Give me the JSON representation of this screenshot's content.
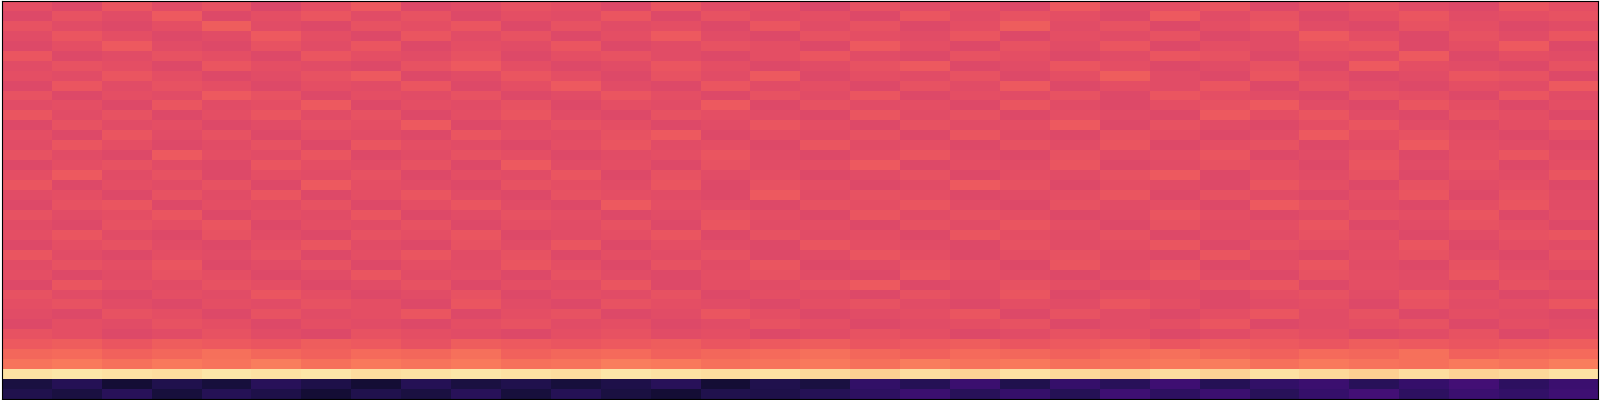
{
  "chart_data": {
    "type": "heatmap",
    "color": "magma",
    "tick_labels": false,
    "zlim": [
      0,
      1
    ],
    "cells": [
      [
        0.62,
        0.6,
        0.64,
        0.61,
        0.63,
        0.59,
        0.62,
        0.65,
        0.6,
        0.61,
        0.63,
        0.62,
        0.6,
        0.64,
        0.61,
        0.62,
        0.59,
        0.63,
        0.61,
        0.62,
        0.6,
        0.65,
        0.61,
        0.62,
        0.64,
        0.6,
        0.62,
        0.63,
        0.61,
        0.6,
        0.64,
        0.62
      ],
      [
        0.6,
        0.63,
        0.61,
        0.65,
        0.6,
        0.62,
        0.64,
        0.61,
        0.63,
        0.6,
        0.62,
        0.61,
        0.64,
        0.6,
        0.63,
        0.61,
        0.62,
        0.6,
        0.64,
        0.61,
        0.63,
        0.62,
        0.6,
        0.65,
        0.61,
        0.63,
        0.6,
        0.62,
        0.64,
        0.61,
        0.62,
        0.63
      ],
      [
        0.63,
        0.61,
        0.6,
        0.62,
        0.66,
        0.61,
        0.6,
        0.63,
        0.62,
        0.64,
        0.6,
        0.63,
        0.61,
        0.62,
        0.6,
        0.64,
        0.61,
        0.63,
        0.6,
        0.62,
        0.66,
        0.61,
        0.63,
        0.6,
        0.62,
        0.64,
        0.61,
        0.6,
        0.63,
        0.62,
        0.6,
        0.61
      ],
      [
        0.61,
        0.64,
        0.62,
        0.6,
        0.61,
        0.65,
        0.62,
        0.6,
        0.64,
        0.61,
        0.63,
        0.6,
        0.62,
        0.65,
        0.61,
        0.6,
        0.63,
        0.62,
        0.61,
        0.64,
        0.6,
        0.62,
        0.61,
        0.63,
        0.6,
        0.61,
        0.65,
        0.62,
        0.6,
        0.63,
        0.61,
        0.64
      ],
      [
        0.6,
        0.62,
        0.65,
        0.61,
        0.6,
        0.63,
        0.61,
        0.64,
        0.6,
        0.62,
        0.61,
        0.64,
        0.6,
        0.61,
        0.63,
        0.62,
        0.6,
        0.65,
        0.62,
        0.6,
        0.63,
        0.61,
        0.64,
        0.6,
        0.62,
        0.61,
        0.63,
        0.64,
        0.6,
        0.62,
        0.65,
        0.6
      ],
      [
        0.64,
        0.6,
        0.61,
        0.63,
        0.62,
        0.6,
        0.64,
        0.62,
        0.61,
        0.63,
        0.6,
        0.62,
        0.63,
        0.61,
        0.6,
        0.62,
        0.64,
        0.61,
        0.6,
        0.63,
        0.62,
        0.6,
        0.61,
        0.64,
        0.63,
        0.6,
        0.62,
        0.61,
        0.65,
        0.6,
        0.62,
        0.61
      ],
      [
        0.61,
        0.63,
        0.62,
        0.6,
        0.64,
        0.62,
        0.61,
        0.6,
        0.63,
        0.65,
        0.62,
        0.6,
        0.61,
        0.64,
        0.62,
        0.6,
        0.61,
        0.63,
        0.65,
        0.6,
        0.61,
        0.64,
        0.62,
        0.6,
        0.61,
        0.63,
        0.6,
        0.65,
        0.62,
        0.61,
        0.6,
        0.63
      ],
      [
        0.62,
        0.61,
        0.64,
        0.62,
        0.6,
        0.61,
        0.63,
        0.65,
        0.6,
        0.61,
        0.64,
        0.62,
        0.6,
        0.63,
        0.61,
        0.65,
        0.6,
        0.62,
        0.61,
        0.63,
        0.6,
        0.62,
        0.66,
        0.61,
        0.6,
        0.64,
        0.62,
        0.6,
        0.61,
        0.64,
        0.63,
        0.6
      ],
      [
        0.6,
        0.64,
        0.61,
        0.63,
        0.62,
        0.6,
        0.62,
        0.61,
        0.64,
        0.6,
        0.62,
        0.65,
        0.61,
        0.6,
        0.64,
        0.61,
        0.62,
        0.6,
        0.63,
        0.61,
        0.65,
        0.6,
        0.62,
        0.61,
        0.64,
        0.6,
        0.63,
        0.61,
        0.6,
        0.62,
        0.61,
        0.65
      ],
      [
        0.63,
        0.6,
        0.62,
        0.61,
        0.65,
        0.63,
        0.6,
        0.62,
        0.61,
        0.63,
        0.6,
        0.61,
        0.64,
        0.62,
        0.6,
        0.63,
        0.61,
        0.64,
        0.6,
        0.62,
        0.61,
        0.63,
        0.6,
        0.64,
        0.62,
        0.61,
        0.6,
        0.63,
        0.62,
        0.6,
        0.64,
        0.61
      ],
      [
        0.61,
        0.62,
        0.6,
        0.64,
        0.61,
        0.62,
        0.65,
        0.6,
        0.62,
        0.61,
        0.63,
        0.6,
        0.62,
        0.61,
        0.65,
        0.6,
        0.63,
        0.61,
        0.62,
        0.6,
        0.64,
        0.61,
        0.6,
        0.62,
        0.63,
        0.65,
        0.61,
        0.6,
        0.64,
        0.62,
        0.6,
        0.62
      ],
      [
        0.64,
        0.61,
        0.63,
        0.6,
        0.62,
        0.64,
        0.61,
        0.63,
        0.6,
        0.62,
        0.64,
        0.61,
        0.6,
        0.63,
        0.62,
        0.61,
        0.6,
        0.64,
        0.61,
        0.63,
        0.6,
        0.62,
        0.61,
        0.6,
        0.65,
        0.62,
        0.64,
        0.61,
        0.6,
        0.63,
        0.62,
        0.6
      ],
      [
        0.6,
        0.63,
        0.61,
        0.62,
        0.6,
        0.61,
        0.63,
        0.62,
        0.65,
        0.6,
        0.61,
        0.63,
        0.62,
        0.6,
        0.61,
        0.64,
        0.62,
        0.6,
        0.63,
        0.61,
        0.62,
        0.65,
        0.6,
        0.63,
        0.61,
        0.6,
        0.62,
        0.64,
        0.61,
        0.6,
        0.62,
        0.64
      ],
      [
        0.62,
        0.6,
        0.64,
        0.61,
        0.63,
        0.6,
        0.62,
        0.61,
        0.6,
        0.64,
        0.62,
        0.61,
        0.63,
        0.65,
        0.6,
        0.62,
        0.61,
        0.63,
        0.6,
        0.64,
        0.61,
        0.6,
        0.63,
        0.62,
        0.6,
        0.61,
        0.65,
        0.62,
        0.63,
        0.61,
        0.6,
        0.62
      ],
      [
        0.61,
        0.64,
        0.62,
        0.6,
        0.61,
        0.63,
        0.6,
        0.64,
        0.62,
        0.61,
        0.6,
        0.62,
        0.64,
        0.61,
        0.62,
        0.6,
        0.64,
        0.61,
        0.62,
        0.6,
        0.63,
        0.61,
        0.64,
        0.6,
        0.62,
        0.63,
        0.6,
        0.61,
        0.65,
        0.62,
        0.61,
        0.6
      ],
      [
        0.63,
        0.61,
        0.6,
        0.65,
        0.62,
        0.61,
        0.64,
        0.6,
        0.61,
        0.63,
        0.62,
        0.6,
        0.61,
        0.62,
        0.64,
        0.61,
        0.6,
        0.62,
        0.64,
        0.61,
        0.6,
        0.63,
        0.61,
        0.62,
        0.64,
        0.6,
        0.61,
        0.63,
        0.6,
        0.62,
        0.64,
        0.61
      ],
      [
        0.6,
        0.62,
        0.63,
        0.61,
        0.6,
        0.64,
        0.62,
        0.61,
        0.63,
        0.6,
        0.65,
        0.61,
        0.62,
        0.6,
        0.63,
        0.61,
        0.62,
        0.65,
        0.6,
        0.62,
        0.61,
        0.64,
        0.6,
        0.61,
        0.63,
        0.62,
        0.6,
        0.64,
        0.61,
        0.63,
        0.6,
        0.62
      ],
      [
        0.62,
        0.65,
        0.61,
        0.63,
        0.6,
        0.62,
        0.61,
        0.63,
        0.6,
        0.62,
        0.61,
        0.64,
        0.6,
        0.63,
        0.61,
        0.62,
        0.6,
        0.61,
        0.63,
        0.6,
        0.62,
        0.61,
        0.63,
        0.65,
        0.6,
        0.62,
        0.61,
        0.63,
        0.6,
        0.62,
        0.61,
        0.64
      ],
      [
        0.64,
        0.6,
        0.62,
        0.61,
        0.63,
        0.6,
        0.65,
        0.62,
        0.61,
        0.6,
        0.63,
        0.62,
        0.61,
        0.64,
        0.6,
        0.63,
        0.62,
        0.6,
        0.61,
        0.65,
        0.63,
        0.6,
        0.62,
        0.61,
        0.6,
        0.64,
        0.62,
        0.6,
        0.63,
        0.61,
        0.62,
        0.6
      ],
      [
        0.61,
        0.62,
        0.6,
        0.63,
        0.61,
        0.64,
        0.6,
        0.62,
        0.64,
        0.61,
        0.6,
        0.63,
        0.62,
        0.61,
        0.6,
        0.65,
        0.61,
        0.63,
        0.62,
        0.6,
        0.61,
        0.62,
        0.64,
        0.6,
        0.63,
        0.61,
        0.6,
        0.62,
        0.64,
        0.6,
        0.63,
        0.61
      ],
      [
        0.6,
        0.63,
        0.64,
        0.6,
        0.62,
        0.61,
        0.63,
        0.6,
        0.62,
        0.64,
        0.61,
        0.6,
        0.65,
        0.62,
        0.61,
        0.6,
        0.63,
        0.62,
        0.64,
        0.61,
        0.6,
        0.63,
        0.61,
        0.62,
        0.6,
        0.65,
        0.63,
        0.61,
        0.6,
        0.62,
        0.64,
        0.61
      ],
      [
        0.63,
        0.61,
        0.62,
        0.64,
        0.6,
        0.62,
        0.61,
        0.64,
        0.6,
        0.61,
        0.63,
        0.62,
        0.6,
        0.61,
        0.63,
        0.62,
        0.6,
        0.64,
        0.61,
        0.63,
        0.62,
        0.6,
        0.61,
        0.64,
        0.62,
        0.6,
        0.61,
        0.63,
        0.62,
        0.64,
        0.6,
        0.62
      ],
      [
        0.61,
        0.6,
        0.63,
        0.62,
        0.64,
        0.6,
        0.62,
        0.61,
        0.63,
        0.6,
        0.62,
        0.61,
        0.63,
        0.6,
        0.64,
        0.61,
        0.62,
        0.6,
        0.63,
        0.61,
        0.64,
        0.62,
        0.6,
        0.63,
        0.61,
        0.62,
        0.64,
        0.6,
        0.61,
        0.63,
        0.62,
        0.6
      ],
      [
        0.62,
        0.64,
        0.61,
        0.6,
        0.63,
        0.61,
        0.6,
        0.63,
        0.62,
        0.64,
        0.6,
        0.61,
        0.62,
        0.64,
        0.6,
        0.63,
        0.61,
        0.62,
        0.6,
        0.64,
        0.62,
        0.61,
        0.63,
        0.6,
        0.62,
        0.61,
        0.63,
        0.62,
        0.6,
        0.61,
        0.63,
        0.64
      ],
      [
        0.6,
        0.62,
        0.63,
        0.61,
        0.6,
        0.62,
        0.64,
        0.61,
        0.6,
        0.63,
        0.61,
        0.64,
        0.6,
        0.62,
        0.61,
        0.6,
        0.64,
        0.62,
        0.61,
        0.6,
        0.63,
        0.61,
        0.62,
        0.64,
        0.6,
        0.63,
        0.62,
        0.61,
        0.64,
        0.6,
        0.62,
        0.61
      ],
      [
        0.64,
        0.61,
        0.6,
        0.62,
        0.61,
        0.63,
        0.6,
        0.62,
        0.64,
        0.61,
        0.63,
        0.6,
        0.62,
        0.61,
        0.63,
        0.6,
        0.61,
        0.64,
        0.62,
        0.6,
        0.62,
        0.63,
        0.61,
        0.6,
        0.64,
        0.61,
        0.6,
        0.62,
        0.63,
        0.61,
        0.6,
        0.63
      ],
      [
        0.61,
        0.63,
        0.62,
        0.64,
        0.6,
        0.61,
        0.63,
        0.6,
        0.62,
        0.61,
        0.64,
        0.62,
        0.6,
        0.63,
        0.61,
        0.64,
        0.6,
        0.61,
        0.63,
        0.62,
        0.6,
        0.64,
        0.61,
        0.63,
        0.6,
        0.62,
        0.64,
        0.61,
        0.6,
        0.63,
        0.61,
        0.62
      ],
      [
        0.62,
        0.6,
        0.61,
        0.63,
        0.62,
        0.6,
        0.61,
        0.64,
        0.61,
        0.62,
        0.6,
        0.63,
        0.61,
        0.6,
        0.62,
        0.63,
        0.61,
        0.6,
        0.64,
        0.62,
        0.61,
        0.6,
        0.62,
        0.64,
        0.61,
        0.6,
        0.63,
        0.62,
        0.61,
        0.64,
        0.62,
        0.6
      ],
      [
        0.6,
        0.64,
        0.62,
        0.61,
        0.63,
        0.62,
        0.6,
        0.61,
        0.63,
        0.6,
        0.62,
        0.61,
        0.64,
        0.6,
        0.62,
        0.61,
        0.63,
        0.65,
        0.6,
        0.61,
        0.63,
        0.62,
        0.6,
        0.61,
        0.63,
        0.64,
        0.6,
        0.62,
        0.61,
        0.6,
        0.63,
        0.62
      ],
      [
        0.63,
        0.61,
        0.6,
        0.62,
        0.61,
        0.64,
        0.62,
        0.6,
        0.61,
        0.63,
        0.6,
        0.62,
        0.61,
        0.63,
        0.6,
        0.62,
        0.61,
        0.6,
        0.63,
        0.61,
        0.64,
        0.6,
        0.62,
        0.61,
        0.6,
        0.62,
        0.63,
        0.61,
        0.64,
        0.62,
        0.6,
        0.61
      ],
      [
        0.62,
        0.63,
        0.61,
        0.6,
        0.62,
        0.61,
        0.63,
        0.62,
        0.6,
        0.64,
        0.61,
        0.6,
        0.63,
        0.62,
        0.61,
        0.6,
        0.62,
        0.63,
        0.61,
        0.6,
        0.62,
        0.61,
        0.64,
        0.62,
        0.6,
        0.61,
        0.62,
        0.6,
        0.63,
        0.61,
        0.62,
        0.64
      ],
      [
        0.61,
        0.6,
        0.63,
        0.62,
        0.6,
        0.63,
        0.61,
        0.62,
        0.64,
        0.6,
        0.62,
        0.63,
        0.6,
        0.61,
        0.64,
        0.62,
        0.6,
        0.61,
        0.62,
        0.64,
        0.6,
        0.63,
        0.61,
        0.6,
        0.62,
        0.64,
        0.61,
        0.63,
        0.6,
        0.62,
        0.61,
        0.6
      ],
      [
        0.6,
        0.62,
        0.61,
        0.63,
        0.62,
        0.6,
        0.62,
        0.61,
        0.6,
        0.62,
        0.63,
        0.61,
        0.62,
        0.6,
        0.61,
        0.63,
        0.62,
        0.6,
        0.61,
        0.62,
        0.63,
        0.6,
        0.61,
        0.62,
        0.64,
        0.6,
        0.61,
        0.62,
        0.63,
        0.6,
        0.62,
        0.61
      ],
      [
        0.63,
        0.62,
        0.6,
        0.61,
        0.63,
        0.61,
        0.6,
        0.63,
        0.62,
        0.61,
        0.6,
        0.62,
        0.63,
        0.61,
        0.62,
        0.6,
        0.61,
        0.63,
        0.62,
        0.6,
        0.61,
        0.63,
        0.62,
        0.6,
        0.61,
        0.63,
        0.62,
        0.6,
        0.61,
        0.63,
        0.6,
        0.62
      ],
      [
        0.65,
        0.66,
        0.64,
        0.66,
        0.65,
        0.64,
        0.66,
        0.65,
        0.63,
        0.66,
        0.65,
        0.64,
        0.65,
        0.66,
        0.64,
        0.65,
        0.66,
        0.64,
        0.65,
        0.66,
        0.64,
        0.65,
        0.66,
        0.64,
        0.66,
        0.65,
        0.64,
        0.66,
        0.65,
        0.64,
        0.65,
        0.66
      ],
      [
        0.68,
        0.69,
        0.67,
        0.68,
        0.7,
        0.68,
        0.67,
        0.69,
        0.68,
        0.7,
        0.67,
        0.68,
        0.69,
        0.67,
        0.68,
        0.69,
        0.7,
        0.68,
        0.67,
        0.69,
        0.68,
        0.67,
        0.69,
        0.7,
        0.68,
        0.67,
        0.69,
        0.68,
        0.7,
        0.67,
        0.68,
        0.69
      ],
      [
        0.71,
        0.72,
        0.7,
        0.72,
        0.71,
        0.73,
        0.7,
        0.72,
        0.71,
        0.72,
        0.7,
        0.71,
        0.73,
        0.72,
        0.7,
        0.71,
        0.72,
        0.7,
        0.73,
        0.71,
        0.72,
        0.7,
        0.71,
        0.72,
        0.73,
        0.7,
        0.72,
        0.71,
        0.7,
        0.72,
        0.71,
        0.73
      ],
      [
        0.94,
        0.95,
        0.94,
        0.93,
        0.95,
        0.94,
        0.95,
        0.93,
        0.94,
        0.95,
        0.94,
        0.93,
        0.95,
        0.94,
        0.93,
        0.94,
        0.92,
        0.9,
        0.93,
        0.91,
        0.94,
        0.92,
        0.9,
        0.93,
        0.91,
        0.94,
        0.92,
        0.9,
        0.93,
        0.91,
        0.92,
        0.94
      ],
      [
        0.12,
        0.15,
        0.1,
        0.14,
        0.11,
        0.16,
        0.13,
        0.1,
        0.15,
        0.12,
        0.14,
        0.11,
        0.13,
        0.16,
        0.1,
        0.14,
        0.12,
        0.18,
        0.15,
        0.2,
        0.14,
        0.19,
        0.16,
        0.21,
        0.15,
        0.18,
        0.2,
        0.16,
        0.19,
        0.22,
        0.17,
        0.2
      ],
      [
        0.14,
        0.12,
        0.16,
        0.11,
        0.15,
        0.13,
        0.1,
        0.14,
        0.12,
        0.16,
        0.11,
        0.15,
        0.12,
        0.1,
        0.14,
        0.13,
        0.15,
        0.17,
        0.2,
        0.16,
        0.19,
        0.15,
        0.21,
        0.17,
        0.2,
        0.16,
        0.19,
        0.22,
        0.17,
        0.2,
        0.18,
        0.21
      ]
    ]
  }
}
